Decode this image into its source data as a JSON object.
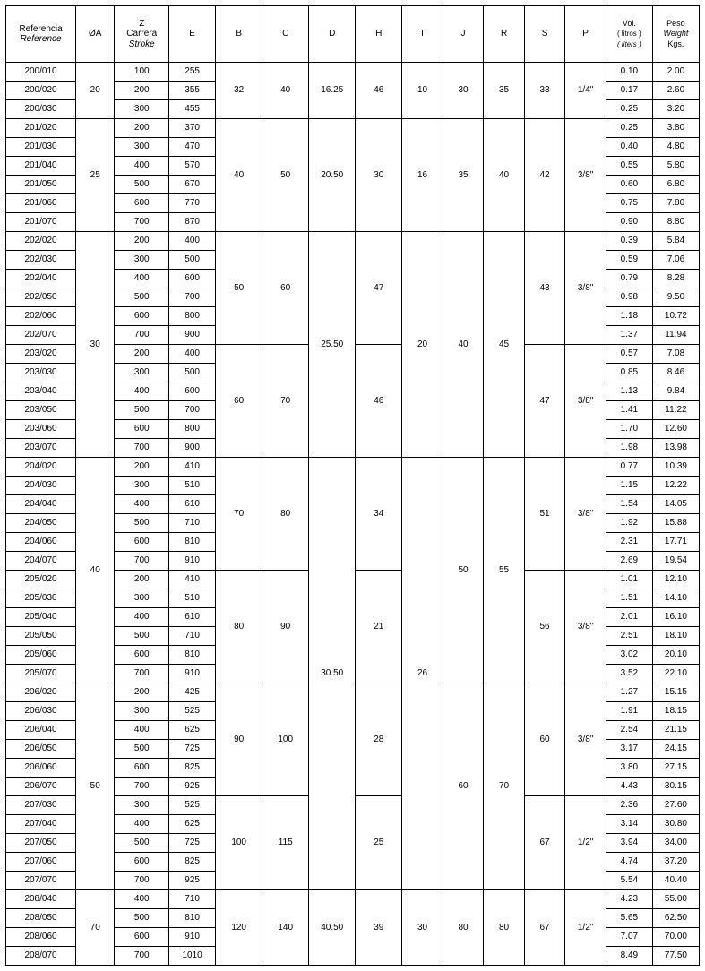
{
  "columns": [
    {
      "key": "ref",
      "label": "Referencia",
      "sublabel": "Reference",
      "class": "col-ref"
    },
    {
      "key": "oa",
      "label": "ØA",
      "class": "col-oa"
    },
    {
      "key": "z",
      "label": "Z",
      "sublabel": "Carrera",
      "sublabel2": "Stroke",
      "class": "col-z"
    },
    {
      "key": "e",
      "label": "E",
      "class": "col-e"
    },
    {
      "key": "b",
      "label": "B",
      "class": "col-b"
    },
    {
      "key": "c",
      "label": "C",
      "class": "col-c"
    },
    {
      "key": "d",
      "label": "D",
      "class": "col-d"
    },
    {
      "key": "h",
      "label": "H",
      "class": "col-h"
    },
    {
      "key": "t",
      "label": "T",
      "class": "col-t"
    },
    {
      "key": "j",
      "label": "J",
      "class": "col-j"
    },
    {
      "key": "r",
      "label": "R",
      "class": "col-r"
    },
    {
      "key": "s",
      "label": "S",
      "class": "col-s"
    },
    {
      "key": "p",
      "label": "P",
      "class": "col-p"
    },
    {
      "key": "vol",
      "label": "Vol.",
      "sublabel": "( litros )",
      "sublabel2": "( liters )",
      "class": "col-vol",
      "small": true
    },
    {
      "key": "peso",
      "label": "Peso",
      "sublabel": "Weight",
      "sublabel2": "Kgs.",
      "class": "col-peso",
      "small": true
    }
  ],
  "groups": [
    {
      "oa": "20",
      "b": "32",
      "c": "40",
      "d": "16.25",
      "h": "46",
      "t": "10",
      "j": "30",
      "r": "35",
      "s": "33",
      "p": "1/4\"",
      "rows": [
        {
          "ref": "200/010",
          "z": "100",
          "e": "255",
          "vol": "0.10",
          "peso": "2.00"
        },
        {
          "ref": "200/020",
          "z": "200",
          "e": "355",
          "vol": "0.17",
          "peso": "2.60"
        },
        {
          "ref": "200/030",
          "z": "300",
          "e": "455",
          "vol": "0.25",
          "peso": "3.20"
        }
      ]
    },
    {
      "oa": "25",
      "b": "40",
      "c": "50",
      "d": "20.50",
      "h": "30",
      "t": "16",
      "j": "35",
      "r": "40",
      "s": "42",
      "p": "3/8\"",
      "rows": [
        {
          "ref": "201/020",
          "z": "200",
          "e": "370",
          "vol": "0.25",
          "peso": "3.80"
        },
        {
          "ref": "201/030",
          "z": "300",
          "e": "470",
          "vol": "0.40",
          "peso": "4.80"
        },
        {
          "ref": "201/040",
          "z": "400",
          "e": "570",
          "vol": "0.55",
          "peso": "5.80"
        },
        {
          "ref": "201/050",
          "z": "500",
          "e": "670",
          "vol": "0.60",
          "peso": "6.80"
        },
        {
          "ref": "201/060",
          "z": "600",
          "e": "770",
          "vol": "0.75",
          "peso": "7.80"
        },
        {
          "ref": "201/070",
          "z": "700",
          "e": "870",
          "vol": "0.90",
          "peso": "8.80"
        }
      ]
    },
    {
      "oa": "30",
      "d": "25.50",
      "t": "20",
      "j": "40",
      "r": "45",
      "subgroups": [
        {
          "b": "50",
          "c": "60",
          "h": "47",
          "s": "43",
          "p": "3/8\"",
          "rows": [
            {
              "ref": "202/020",
              "z": "200",
              "e": "400",
              "vol": "0.39",
              "peso": "5.84"
            },
            {
              "ref": "202/030",
              "z": "300",
              "e": "500",
              "vol": "0.59",
              "peso": "7.06"
            },
            {
              "ref": "202/040",
              "z": "400",
              "e": "600",
              "vol": "0.79",
              "peso": "8.28"
            },
            {
              "ref": "202/050",
              "z": "500",
              "e": "700",
              "vol": "0.98",
              "peso": "9.50"
            },
            {
              "ref": "202/060",
              "z": "600",
              "e": "800",
              "vol": "1.18",
              "peso": "10.72"
            },
            {
              "ref": "202/070",
              "z": "700",
              "e": "900",
              "vol": "1.37",
              "peso": "11.94"
            }
          ]
        },
        {
          "b": "60",
          "c": "70",
          "h": "46",
          "s": "47",
          "p": "3/8\"",
          "rows": [
            {
              "ref": "203/020",
              "z": "200",
              "e": "400",
              "vol": "0.57",
              "peso": "7.08"
            },
            {
              "ref": "203/030",
              "z": "300",
              "e": "500",
              "vol": "0.85",
              "peso": "8.46"
            },
            {
              "ref": "203/040",
              "z": "400",
              "e": "600",
              "vol": "1.13",
              "peso": "9.84"
            },
            {
              "ref": "203/050",
              "z": "500",
              "e": "700",
              "vol": "1.41",
              "peso": "11.22"
            },
            {
              "ref": "203/060",
              "z": "600",
              "e": "800",
              "vol": "1.70",
              "peso": "12.60"
            },
            {
              "ref": "203/070",
              "z": "700",
              "e": "900",
              "vol": "1.98",
              "peso": "13.98"
            }
          ]
        }
      ]
    },
    {
      "oa": "40",
      "d": "30.50",
      "t": "26",
      "j": "50",
      "r": "55",
      "subgroups": [
        {
          "b": "70",
          "c": "80",
          "h": "34",
          "s": "51",
          "p": "3/8\"",
          "rows": [
            {
              "ref": "204/020",
              "z": "200",
              "e": "410",
              "vol": "0.77",
              "peso": "10.39"
            },
            {
              "ref": "204/030",
              "z": "300",
              "e": "510",
              "vol": "1.15",
              "peso": "12.22"
            },
            {
              "ref": "204/040",
              "z": "400",
              "e": "610",
              "vol": "1.54",
              "peso": "14.05"
            },
            {
              "ref": "204/050",
              "z": "500",
              "e": "710",
              "vol": "1.92",
              "peso": "15.88"
            },
            {
              "ref": "204/060",
              "z": "600",
              "e": "810",
              "vol": "2.31",
              "peso": "17.71"
            },
            {
              "ref": "204/070",
              "z": "700",
              "e": "910",
              "vol": "2.69",
              "peso": "19.54"
            }
          ]
        },
        {
          "b": "80",
          "c": "90",
          "h": "21",
          "s": "56",
          "p": "3/8\"",
          "rows": [
            {
              "ref": "205/020",
              "z": "200",
              "e": "410",
              "vol": "1.01",
              "peso": "12.10"
            },
            {
              "ref": "205/030",
              "z": "300",
              "e": "510",
              "vol": "1.51",
              "peso": "14.10"
            },
            {
              "ref": "205/040",
              "z": "400",
              "e": "610",
              "vol": "2.01",
              "peso": "16.10"
            },
            {
              "ref": "205/050",
              "z": "500",
              "e": "710",
              "vol": "2.51",
              "peso": "18.10"
            },
            {
              "ref": "205/060",
              "z": "600",
              "e": "810",
              "vol": "3.02",
              "peso": "20.10"
            },
            {
              "ref": "205/070",
              "z": "700",
              "e": "910",
              "vol": "3.52",
              "peso": "22.10"
            }
          ]
        }
      ]
    },
    {
      "oa": "50",
      "d": "30.50",
      "t": "26",
      "j": "60",
      "r": "70",
      "share_d_t_with_prev": true,
      "subgroups": [
        {
          "b": "90",
          "c": "100",
          "h": "28",
          "s": "60",
          "p": "3/8\"",
          "rows": [
            {
              "ref": "206/020",
              "z": "200",
              "e": "425",
              "vol": "1.27",
              "peso": "15.15"
            },
            {
              "ref": "206/030",
              "z": "300",
              "e": "525",
              "vol": "1.91",
              "peso": "18.15"
            },
            {
              "ref": "206/040",
              "z": "400",
              "e": "625",
              "vol": "2.54",
              "peso": "21.15"
            },
            {
              "ref": "206/050",
              "z": "500",
              "e": "725",
              "vol": "3.17",
              "peso": "24.15"
            },
            {
              "ref": "206/060",
              "z": "600",
              "e": "825",
              "vol": "3.80",
              "peso": "27.15"
            },
            {
              "ref": "206/070",
              "z": "700",
              "e": "925",
              "vol": "4.43",
              "peso": "30.15"
            }
          ]
        },
        {
          "b": "100",
          "c": "115",
          "h": "25",
          "s": "67",
          "p": "1/2\"",
          "rows": [
            {
              "ref": "207/030",
              "z": "300",
              "e": "525",
              "vol": "2.36",
              "peso": "27.60"
            },
            {
              "ref": "207/040",
              "z": "400",
              "e": "625",
              "vol": "3.14",
              "peso": "30.80"
            },
            {
              "ref": "207/050",
              "z": "500",
              "e": "725",
              "vol": "3.94",
              "peso": "34.00"
            },
            {
              "ref": "207/060",
              "z": "600",
              "e": "825",
              "vol": "4.74",
              "peso": "37.20"
            },
            {
              "ref": "207/070",
              "z": "700",
              "e": "925",
              "vol": "5.54",
              "peso": "40.40"
            }
          ]
        }
      ]
    },
    {
      "oa": "70",
      "b": "120",
      "c": "140",
      "d": "40.50",
      "h": "39",
      "t": "30",
      "j": "80",
      "r": "80",
      "s": "67",
      "p": "1/2\"",
      "rows": [
        {
          "ref": "208/040",
          "z": "400",
          "e": "710",
          "vol": "4.23",
          "peso": "55.00"
        },
        {
          "ref": "208/050",
          "z": "500",
          "e": "810",
          "vol": "5.65",
          "peso": "62.50"
        },
        {
          "ref": "208/060",
          "z": "600",
          "e": "910",
          "vol": "7.07",
          "peso": "70.00"
        },
        {
          "ref": "208/070",
          "z": "700",
          "e": "1010",
          "vol": "8.49",
          "peso": "77.50"
        }
      ]
    }
  ]
}
